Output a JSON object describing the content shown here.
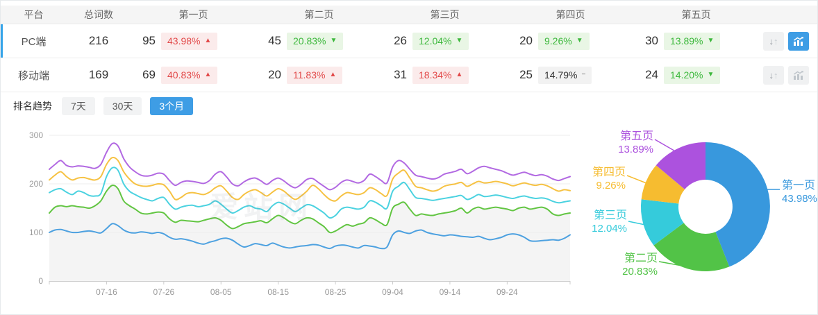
{
  "table": {
    "headers": {
      "platform": "平台",
      "total": "总词数",
      "pages": [
        "第一页",
        "第二页",
        "第三页",
        "第四页",
        "第五页"
      ]
    },
    "rows": [
      {
        "platform": "PC端",
        "total": "216",
        "selected": true,
        "pages": [
          {
            "count": "95",
            "pct": "43.98%",
            "dir": "up",
            "tone": "red"
          },
          {
            "count": "45",
            "pct": "20.83%",
            "dir": "down",
            "tone": "green"
          },
          {
            "count": "26",
            "pct": "12.04%",
            "dir": "down",
            "tone": "green"
          },
          {
            "count": "20",
            "pct": "9.26%",
            "dir": "down",
            "tone": "green"
          },
          {
            "count": "30",
            "pct": "13.89%",
            "dir": "down",
            "tone": "green"
          }
        ],
        "actions": {
          "compare_active": false,
          "trend_active": true
        }
      },
      {
        "platform": "移动端",
        "total": "169",
        "selected": false,
        "pages": [
          {
            "count": "69",
            "pct": "40.83%",
            "dir": "up",
            "tone": "red"
          },
          {
            "count": "20",
            "pct": "11.83%",
            "dir": "up",
            "tone": "red"
          },
          {
            "count": "31",
            "pct": "18.34%",
            "dir": "up",
            "tone": "red"
          },
          {
            "count": "25",
            "pct": "14.79%",
            "dir": "flat",
            "tone": "gray"
          },
          {
            "count": "24",
            "pct": "14.20%",
            "dir": "down",
            "tone": "green"
          }
        ],
        "actions": {
          "compare_active": false,
          "trend_active": false
        }
      }
    ]
  },
  "trend_controls": {
    "label": "排名趋势",
    "ranges": [
      "7天",
      "30天",
      "3个月"
    ],
    "active_range": "3个月"
  },
  "watermark": "爱站网",
  "colors": {
    "accent_blue": "#3e9de5",
    "badge_red_text": "#e24a4a",
    "badge_green_text": "#3cb83c",
    "selected_row_bar": "#35a4e9"
  },
  "chart_data": [
    {
      "type": "line",
      "title": "",
      "ylim": [
        0,
        300
      ],
      "y_ticks": [
        0,
        100,
        200,
        300
      ],
      "x_tick_labels": [
        "07-16",
        "07-26",
        "08-05",
        "08-15",
        "08-25",
        "09-04",
        "09-14",
        "09-24"
      ],
      "x_tick_indices": [
        10,
        20,
        30,
        40,
        50,
        60,
        70,
        80
      ],
      "n_points": 92,
      "grid": true,
      "legend": false,
      "series": [
        {
          "name": "第一页",
          "color": "#4da1e0",
          "area": false,
          "values": [
            100,
            105,
            106,
            103,
            100,
            100,
            102,
            103,
            101,
            99,
            108,
            118,
            114,
            105,
            100,
            99,
            101,
            100,
            98,
            100,
            97,
            90,
            86,
            87,
            85,
            82,
            78,
            76,
            80,
            83,
            87,
            88,
            84,
            76,
            70,
            73,
            77,
            75,
            73,
            78,
            74,
            70,
            68,
            70,
            72,
            73,
            75,
            74,
            70,
            67,
            72,
            74,
            73,
            70,
            68,
            73,
            72,
            70,
            67,
            70,
            95,
            103,
            100,
            98,
            103,
            105,
            100,
            97,
            95,
            93,
            95,
            94,
            92,
            91,
            90,
            92,
            88,
            85,
            87,
            90,
            95,
            97,
            95,
            90,
            83,
            82,
            83,
            84,
            85,
            84,
            88,
            95
          ]
        },
        {
          "name": "第二页",
          "color": "#62c542",
          "area": true,
          "area_color": "#f4f4f4",
          "values": [
            140,
            152,
            155,
            153,
            155,
            153,
            152,
            150,
            155,
            165,
            185,
            197,
            190,
            165,
            155,
            148,
            140,
            138,
            140,
            142,
            140,
            128,
            121,
            125,
            124,
            123,
            122,
            125,
            128,
            130,
            125,
            115,
            108,
            112,
            118,
            120,
            122,
            124,
            120,
            128,
            135,
            130,
            122,
            118,
            125,
            130,
            128,
            120,
            112,
            100,
            103,
            110,
            116,
            113,
            117,
            120,
            130,
            126,
            119,
            116,
            150,
            158,
            162,
            148,
            135,
            138,
            136,
            135,
            138,
            140,
            142,
            145,
            150,
            140,
            148,
            152,
            148,
            150,
            152,
            150,
            148,
            145,
            150,
            152,
            148,
            150,
            152,
            148,
            138,
            135,
            138,
            140
          ]
        },
        {
          "name": "第三页",
          "color": "#4bd2e0",
          "area": false,
          "values": [
            182,
            188,
            190,
            183,
            178,
            185,
            182,
            176,
            175,
            180,
            215,
            233,
            228,
            200,
            185,
            178,
            172,
            168,
            165,
            170,
            172,
            158,
            148,
            152,
            155,
            156,
            153,
            155,
            158,
            165,
            158,
            148,
            140,
            145,
            152,
            155,
            150,
            148,
            143,
            155,
            162,
            158,
            150,
            143,
            150,
            157,
            155,
            148,
            140,
            130,
            135,
            148,
            152,
            150,
            148,
            152,
            165,
            162,
            155,
            150,
            185,
            195,
            203,
            188,
            172,
            170,
            168,
            166,
            168,
            170,
            172,
            174,
            176,
            168,
            172,
            178,
            174,
            175,
            177,
            175,
            172,
            170,
            173,
            175,
            172,
            170,
            171,
            169,
            164,
            161,
            163,
            165
          ]
        },
        {
          "name": "第四页",
          "color": "#f6c243",
          "area": false,
          "values": [
            208,
            218,
            225,
            215,
            208,
            212,
            213,
            210,
            208,
            215,
            240,
            254,
            248,
            225,
            210,
            200,
            196,
            195,
            197,
            200,
            198,
            185,
            168,
            172,
            180,
            182,
            180,
            178,
            183,
            192,
            196,
            185,
            172,
            168,
            178,
            185,
            188,
            182,
            175,
            183,
            190,
            185,
            175,
            168,
            175,
            185,
            197,
            190,
            178,
            168,
            165,
            175,
            182,
            180,
            178,
            182,
            192,
            188,
            180,
            176,
            210,
            222,
            228,
            212,
            195,
            192,
            188,
            185,
            188,
            195,
            198,
            200,
            203,
            195,
            200,
            205,
            202,
            203,
            205,
            203,
            200,
            196,
            199,
            202,
            199,
            197,
            199,
            196,
            190,
            185,
            188,
            186
          ]
        },
        {
          "name": "第五页",
          "color": "#b269e2",
          "area": false,
          "values": [
            230,
            240,
            248,
            238,
            235,
            237,
            236,
            234,
            232,
            240,
            265,
            283,
            278,
            252,
            235,
            225,
            218,
            216,
            218,
            222,
            220,
            207,
            197,
            203,
            206,
            205,
            203,
            201,
            207,
            220,
            225,
            214,
            200,
            196,
            204,
            210,
            212,
            206,
            199,
            207,
            212,
            206,
            197,
            192,
            199,
            209,
            211,
            203,
            195,
            188,
            193,
            203,
            208,
            205,
            202,
            207,
            220,
            215,
            207,
            202,
            235,
            248,
            243,
            230,
            218,
            215,
            212,
            210,
            213,
            220,
            223,
            226,
            230,
            221,
            226,
            233,
            236,
            233,
            230,
            227,
            222,
            218,
            221,
            224,
            220,
            217,
            219,
            216,
            210,
            207,
            211,
            215
          ]
        }
      ]
    },
    {
      "type": "pie",
      "donut": true,
      "labels": [
        "第一页",
        "第二页",
        "第三页",
        "第四页",
        "第五页"
      ],
      "values": [
        43.98,
        20.83,
        12.04,
        9.26,
        13.89
      ],
      "display_pcts": [
        "43.98%",
        "20.83%",
        "12.04%",
        "9.26%",
        "13.89%"
      ],
      "colors": [
        "#3898dd",
        "#52c347",
        "#35cbdb",
        "#f6bc30",
        "#ac52de"
      ]
    }
  ]
}
